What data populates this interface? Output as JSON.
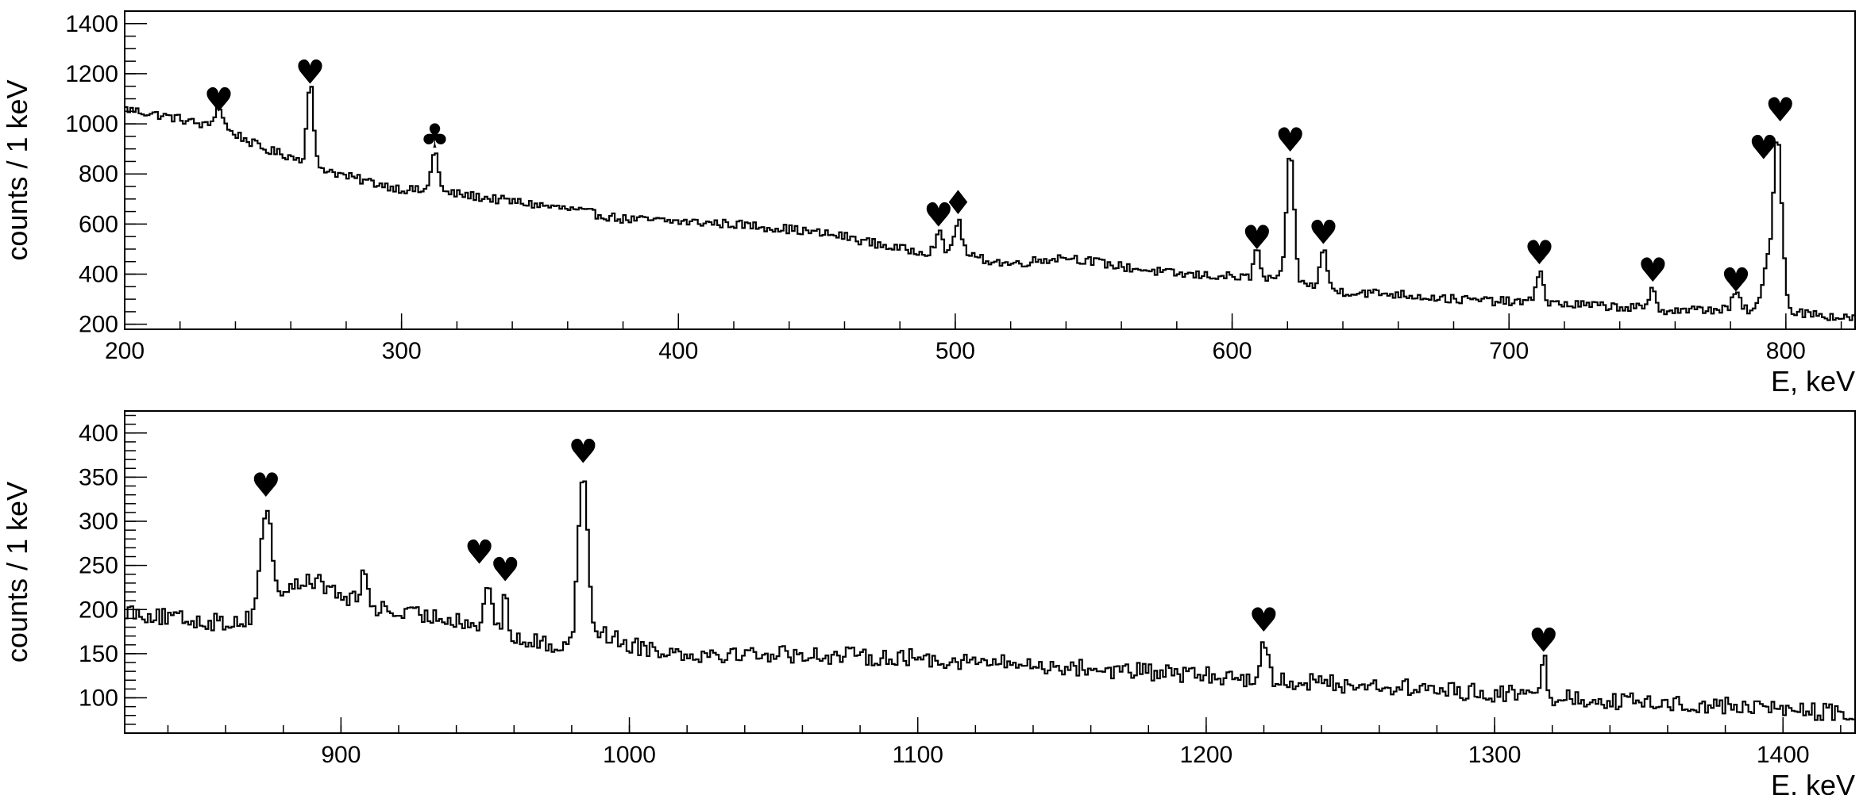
{
  "chart_data": [
    {
      "type": "histogram",
      "xlabel": "E, keV",
      "ylabel": "counts / 1 keV",
      "xlim": [
        200,
        825
      ],
      "ylim": [
        180,
        1450
      ],
      "xticks": [
        200,
        300,
        400,
        500,
        600,
        700,
        800
      ],
      "yticks": [
        200,
        400,
        600,
        800,
        1000,
        1200,
        1400
      ],
      "x_minor_step": 20,
      "y_minor_step": 50,
      "background": [
        [
          200,
          1060
        ],
        [
          220,
          1020
        ],
        [
          240,
          960
        ],
        [
          250,
          900
        ],
        [
          260,
          870
        ],
        [
          280,
          790
        ],
        [
          300,
          740
        ],
        [
          320,
          720
        ],
        [
          340,
          690
        ],
        [
          360,
          660
        ],
        [
          380,
          620
        ],
        [
          400,
          610
        ],
        [
          420,
          600
        ],
        [
          440,
          580
        ],
        [
          460,
          550
        ],
        [
          480,
          500
        ],
        [
          500,
          480
        ],
        [
          520,
          440
        ],
        [
          540,
          470
        ],
        [
          560,
          430
        ],
        [
          580,
          400
        ],
        [
          600,
          390
        ],
        [
          620,
          370
        ],
        [
          640,
          330
        ],
        [
          660,
          320
        ],
        [
          680,
          300
        ],
        [
          700,
          290
        ],
        [
          740,
          270
        ],
        [
          760,
          255
        ],
        [
          780,
          260
        ],
        [
          800,
          255
        ],
        [
          825,
          220
        ]
      ],
      "noise": 18,
      "peaks": [
        {
          "x": 234,
          "height": 90,
          "sigma": 1.6
        },
        {
          "x": 267,
          "height": 330,
          "sigma": 1.1
        },
        {
          "x": 312,
          "height": 170,
          "sigma": 1.2
        },
        {
          "x": 494,
          "height": 80,
          "sigma": 1.2
        },
        {
          "x": 501,
          "height": 130,
          "sigma": 1.5
        },
        {
          "x": 609,
          "height": 120,
          "sigma": 1.1
        },
        {
          "x": 621,
          "height": 510,
          "sigma": 1.4
        },
        {
          "x": 633,
          "height": 150,
          "sigma": 1.3
        },
        {
          "x": 711,
          "height": 130,
          "sigma": 1.3
        },
        {
          "x": 752,
          "height": 80,
          "sigma": 1.0
        },
        {
          "x": 782,
          "height": 70,
          "sigma": 1.2
        },
        {
          "x": 793,
          "height": 160,
          "sigma": 1.5
        },
        {
          "x": 797,
          "height": 690,
          "sigma": 1.6
        }
      ],
      "markers": [
        {
          "x": 234,
          "y": 1050,
          "symbol": "♥"
        },
        {
          "x": 267,
          "y": 1160,
          "symbol": "♥"
        },
        {
          "x": 312,
          "y": 905,
          "symbol": "♣"
        },
        {
          "x": 494,
          "y": 590,
          "symbol": "♥"
        },
        {
          "x": 501,
          "y": 640,
          "symbol": "♦"
        },
        {
          "x": 609,
          "y": 500,
          "symbol": "♥"
        },
        {
          "x": 621,
          "y": 890,
          "symbol": "♥"
        },
        {
          "x": 633,
          "y": 520,
          "symbol": "♥"
        },
        {
          "x": 711,
          "y": 440,
          "symbol": "♥"
        },
        {
          "x": 752,
          "y": 370,
          "symbol": "♥"
        },
        {
          "x": 782,
          "y": 330,
          "symbol": "♥"
        },
        {
          "x": 792,
          "y": 860,
          "symbol": "♥"
        },
        {
          "x": 798,
          "y": 1010,
          "symbol": "♥"
        }
      ]
    },
    {
      "type": "histogram",
      "xlabel": "E, keV",
      "ylabel": "counts / 1 keV",
      "xlim": [
        825,
        1425
      ],
      "ylim": [
        60,
        425
      ],
      "xticks": [
        900,
        1000,
        1100,
        1200,
        1300,
        1400
      ],
      "yticks": [
        100,
        150,
        200,
        250,
        300,
        350,
        400
      ],
      "x_minor_step": 20,
      "y_minor_step": 10,
      "background": [
        [
          825,
          200
        ],
        [
          840,
          190
        ],
        [
          860,
          185
        ],
        [
          870,
          190
        ],
        [
          880,
          220
        ],
        [
          890,
          235
        ],
        [
          900,
          215
        ],
        [
          920,
          195
        ],
        [
          940,
          190
        ],
        [
          960,
          165
        ],
        [
          975,
          160
        ],
        [
          990,
          175
        ],
        [
          1000,
          160
        ],
        [
          1020,
          150
        ],
        [
          1050,
          150
        ],
        [
          1100,
          145
        ],
        [
          1150,
          135
        ],
        [
          1200,
          125
        ],
        [
          1250,
          115
        ],
        [
          1300,
          105
        ],
        [
          1350,
          95
        ],
        [
          1400,
          88
        ],
        [
          1425,
          80
        ]
      ],
      "noise": 10,
      "peaks": [
        {
          "x": 874,
          "height": 110,
          "sigma": 2.0
        },
        {
          "x": 908,
          "height": 45,
          "sigma": 0.9
        },
        {
          "x": 951,
          "height": 60,
          "sigma": 1.1
        },
        {
          "x": 957,
          "height": 50,
          "sigma": 1.0
        },
        {
          "x": 984,
          "height": 190,
          "sigma": 1.6
        },
        {
          "x": 1220,
          "height": 45,
          "sigma": 1.2
        },
        {
          "x": 1317,
          "height": 42,
          "sigma": 1.1
        }
      ],
      "markers": [
        {
          "x": 874,
          "y": 328,
          "symbol": "♥"
        },
        {
          "x": 948,
          "y": 252,
          "symbol": "♥"
        },
        {
          "x": 957,
          "y": 232,
          "symbol": "♥"
        },
        {
          "x": 984,
          "y": 366,
          "symbol": "♥"
        },
        {
          "x": 1220,
          "y": 175,
          "symbol": "♥"
        },
        {
          "x": 1317,
          "y": 152,
          "symbol": "♥"
        }
      ]
    }
  ]
}
